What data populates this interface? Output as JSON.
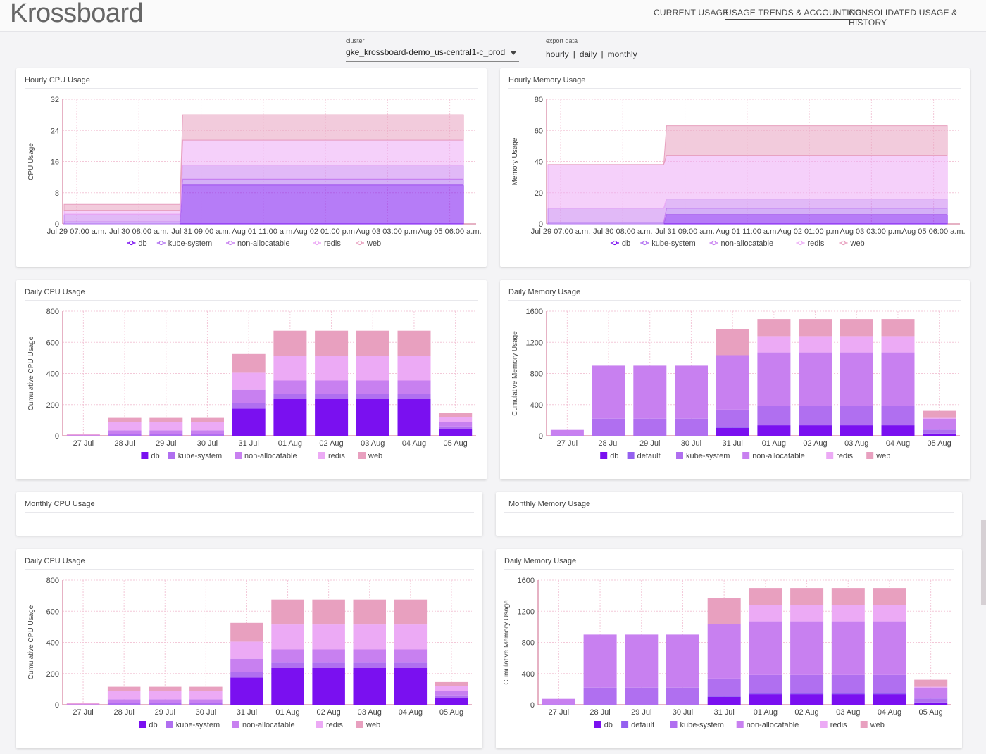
{
  "app": {
    "logo": "Krossboard"
  },
  "nav": [
    {
      "label": "CURRENT USAGE",
      "active": false
    },
    {
      "label": "USAGE TRENDS & ACCOUNTING",
      "active": true
    },
    {
      "label": "CONSOLIDATED USAGE & HISTORY",
      "active": false
    }
  ],
  "controls": {
    "cluster_label": "cluster",
    "cluster_value": "gke_krossboard-demo_us-central1-c_prod",
    "export_label": "export data",
    "export_links": [
      "hourly",
      "daily",
      "monthly"
    ],
    "export_sep": "|"
  },
  "colors": {
    "db": "#7a10f0",
    "default": "#9460f0",
    "kube-system": "#b06ff0",
    "non-allocatable": "#c880f0",
    "redis": "#ecaaf5",
    "web": "#e8a0bf"
  },
  "cards": {
    "hourly_cpu": {
      "title": "Hourly CPU Usage"
    },
    "hourly_mem": {
      "title": "Hourly Memory Usage"
    },
    "daily_cpu": {
      "title": "Daily CPU Usage"
    },
    "daily_mem": {
      "title": "Daily Memory Usage"
    },
    "monthly_cpu": {
      "title": "Monthly CPU Usage"
    },
    "monthly_mem": {
      "title": "Monthly Memory Usage"
    },
    "daily_cpu_2": {
      "title": "Daily CPU Usage"
    },
    "daily_mem_2": {
      "title": "Daily Memory Usage"
    }
  },
  "chart_data": [
    {
      "id": "hourly_cpu",
      "type": "area",
      "title": "Hourly CPU Usage",
      "ylabel": "CPU Usage",
      "ylim": [
        0,
        32
      ],
      "yticks": [
        0,
        8,
        16,
        24,
        32
      ],
      "xticks": [
        "Jul 29 07:00 a.m.",
        "Jul 30 08:00 a.m.",
        "Jul 31 09:00 a.m.",
        "Aug 01 11:00 a.m.",
        "Aug 02 01:00 p.m.",
        "Aug 03 03:00 p.m.",
        "Aug 05 06:00 a.m."
      ],
      "legend": [
        "db",
        "kube-system",
        "non-allocatable",
        "redis",
        "web"
      ],
      "segments": [
        {
          "span": [
            0,
            0.29
          ],
          "series": {
            "db": 0.0,
            "kube-system": 0.5,
            "non-allocatable": 2.0,
            "redis": 1.0,
            "web": 1.5
          }
        },
        {
          "span": [
            0.29,
            1.0
          ],
          "series": {
            "db": 10.0,
            "kube-system": 1.5,
            "non-allocatable": 3.5,
            "redis": 6.5,
            "web": 6.5
          }
        }
      ],
      "grid": true
    },
    {
      "id": "hourly_mem",
      "type": "area",
      "title": "Hourly Memory Usage",
      "ylabel": "Memory Usage",
      "ylim": [
        0,
        80
      ],
      "yticks": [
        0,
        20,
        40,
        60,
        80
      ],
      "xticks": [
        "Jul 29 07:00 a.m.",
        "Jul 30 08:00 a.m.",
        "Jul 31 09:00 a.m.",
        "Aug 01 11:00 a.m.",
        "Aug 02 01:00 p.m.",
        "Aug 03 03:00 p.m.",
        "Aug 05 06:00 a.m."
      ],
      "legend": [
        "db",
        "kube-system",
        "non-allocatable",
        "redis",
        "web"
      ],
      "segments": [
        {
          "span": [
            0,
            0.29
          ],
          "series": {
            "db": 0.0,
            "kube-system": 1.0,
            "non-allocatable": 9.0,
            "redis": 28.0,
            "web": 0.0
          }
        },
        {
          "span": [
            0.29,
            1.0
          ],
          "series": {
            "db": 6.0,
            "kube-system": 4.0,
            "non-allocatable": 6.0,
            "redis": 28.0,
            "web": 19.0
          }
        }
      ],
      "grid": true
    },
    {
      "id": "daily_cpu",
      "type": "bar",
      "title": "Daily CPU Usage",
      "ylabel": "Cumulative CPU Usage",
      "ylim": [
        0,
        800
      ],
      "yticks": [
        0,
        200,
        400,
        600,
        800
      ],
      "categories": [
        "27 Jul",
        "28 Jul",
        "29 Jul",
        "30 Jul",
        "31 Jul",
        "01 Aug",
        "02 Aug",
        "03 Aug",
        "04 Aug",
        "05 Aug"
      ],
      "series": [
        {
          "name": "db",
          "values": [
            0,
            0,
            0,
            0,
            175,
            235,
            235,
            235,
            235,
            45
          ]
        },
        {
          "name": "kube-system",
          "values": [
            1,
            10,
            10,
            10,
            35,
            35,
            35,
            35,
            35,
            15
          ]
        },
        {
          "name": "non-allocatable",
          "values": [
            3,
            25,
            25,
            25,
            85,
            85,
            85,
            85,
            85,
            30
          ]
        },
        {
          "name": "redis",
          "values": [
            3,
            52,
            52,
            52,
            110,
            160,
            160,
            160,
            160,
            30
          ]
        },
        {
          "name": "web",
          "values": [
            3,
            28,
            28,
            28,
            120,
            160,
            160,
            160,
            160,
            25
          ]
        }
      ],
      "grid": true
    },
    {
      "id": "daily_mem",
      "type": "bar",
      "title": "Daily Memory Usage",
      "ylabel": "Cumulative Memory Usage",
      "ylim": [
        0,
        1600
      ],
      "yticks": [
        0,
        400,
        800,
        1200,
        1600
      ],
      "categories": [
        "27 Jul",
        "28 Jul",
        "29 Jul",
        "30 Jul",
        "31 Jul",
        "01 Aug",
        "02 Aug",
        "03 Aug",
        "04 Aug",
        "05 Aug"
      ],
      "series": [
        {
          "name": "db",
          "values": [
            0,
            0,
            0,
            0,
            100,
            135,
            135,
            135,
            135,
            25
          ]
        },
        {
          "name": "default",
          "values": [
            0,
            0,
            0,
            0,
            10,
            10,
            10,
            10,
            10,
            5
          ]
        },
        {
          "name": "kube-system",
          "values": [
            5,
            220,
            220,
            220,
            225,
            235,
            235,
            235,
            235,
            50
          ]
        },
        {
          "name": "non-allocatable",
          "values": [
            70,
            680,
            680,
            680,
            700,
            690,
            690,
            690,
            690,
            140
          ]
        },
        {
          "name": "redis",
          "values": [
            0,
            0,
            0,
            0,
            0,
            210,
            210,
            210,
            210,
            10
          ]
        },
        {
          "name": "web",
          "values": [
            0,
            0,
            0,
            0,
            330,
            220,
            220,
            220,
            220,
            90
          ]
        }
      ],
      "grid": true
    },
    {
      "id": "daily_cpu_2",
      "type": "bar",
      "title": "Daily CPU Usage",
      "ylabel": "Cumulative CPU Usage",
      "ylim": [
        0,
        800
      ],
      "yticks": [
        0,
        200,
        400,
        600,
        800
      ],
      "categories": [
        "27 Jul",
        "28 Jul",
        "29 Jul",
        "30 Jul",
        "31 Jul",
        "01 Aug",
        "02 Aug",
        "03 Aug",
        "04 Aug",
        "05 Aug"
      ],
      "series": [
        {
          "name": "db",
          "values": [
            0,
            0,
            0,
            0,
            175,
            235,
            235,
            235,
            235,
            45
          ]
        },
        {
          "name": "kube-system",
          "values": [
            1,
            10,
            10,
            10,
            35,
            35,
            35,
            35,
            35,
            15
          ]
        },
        {
          "name": "non-allocatable",
          "values": [
            3,
            25,
            25,
            25,
            85,
            85,
            85,
            85,
            85,
            30
          ]
        },
        {
          "name": "redis",
          "values": [
            3,
            52,
            52,
            52,
            110,
            160,
            160,
            160,
            160,
            30
          ]
        },
        {
          "name": "web",
          "values": [
            3,
            28,
            28,
            28,
            120,
            160,
            160,
            160,
            160,
            25
          ]
        }
      ],
      "grid": true
    },
    {
      "id": "daily_mem_2",
      "type": "bar",
      "title": "Daily Memory Usage",
      "ylabel": "Cumulative Memory Usage",
      "ylim": [
        0,
        1600
      ],
      "yticks": [
        0,
        400,
        800,
        1200,
        1600
      ],
      "categories": [
        "27 Jul",
        "28 Jul",
        "29 Jul",
        "30 Jul",
        "31 Jul",
        "01 Aug",
        "02 Aug",
        "03 Aug",
        "04 Aug",
        "05 Aug"
      ],
      "series": [
        {
          "name": "db",
          "values": [
            0,
            0,
            0,
            0,
            100,
            135,
            135,
            135,
            135,
            25
          ]
        },
        {
          "name": "default",
          "values": [
            0,
            0,
            0,
            0,
            10,
            10,
            10,
            10,
            10,
            5
          ]
        },
        {
          "name": "kube-system",
          "values": [
            5,
            220,
            220,
            220,
            225,
            235,
            235,
            235,
            235,
            50
          ]
        },
        {
          "name": "non-allocatable",
          "values": [
            70,
            680,
            680,
            680,
            700,
            690,
            690,
            690,
            690,
            140
          ]
        },
        {
          "name": "redis",
          "values": [
            0,
            0,
            0,
            0,
            0,
            210,
            210,
            210,
            210,
            10
          ]
        },
        {
          "name": "web",
          "values": [
            0,
            0,
            0,
            0,
            330,
            220,
            220,
            220,
            220,
            90
          ]
        }
      ],
      "grid": true
    }
  ]
}
